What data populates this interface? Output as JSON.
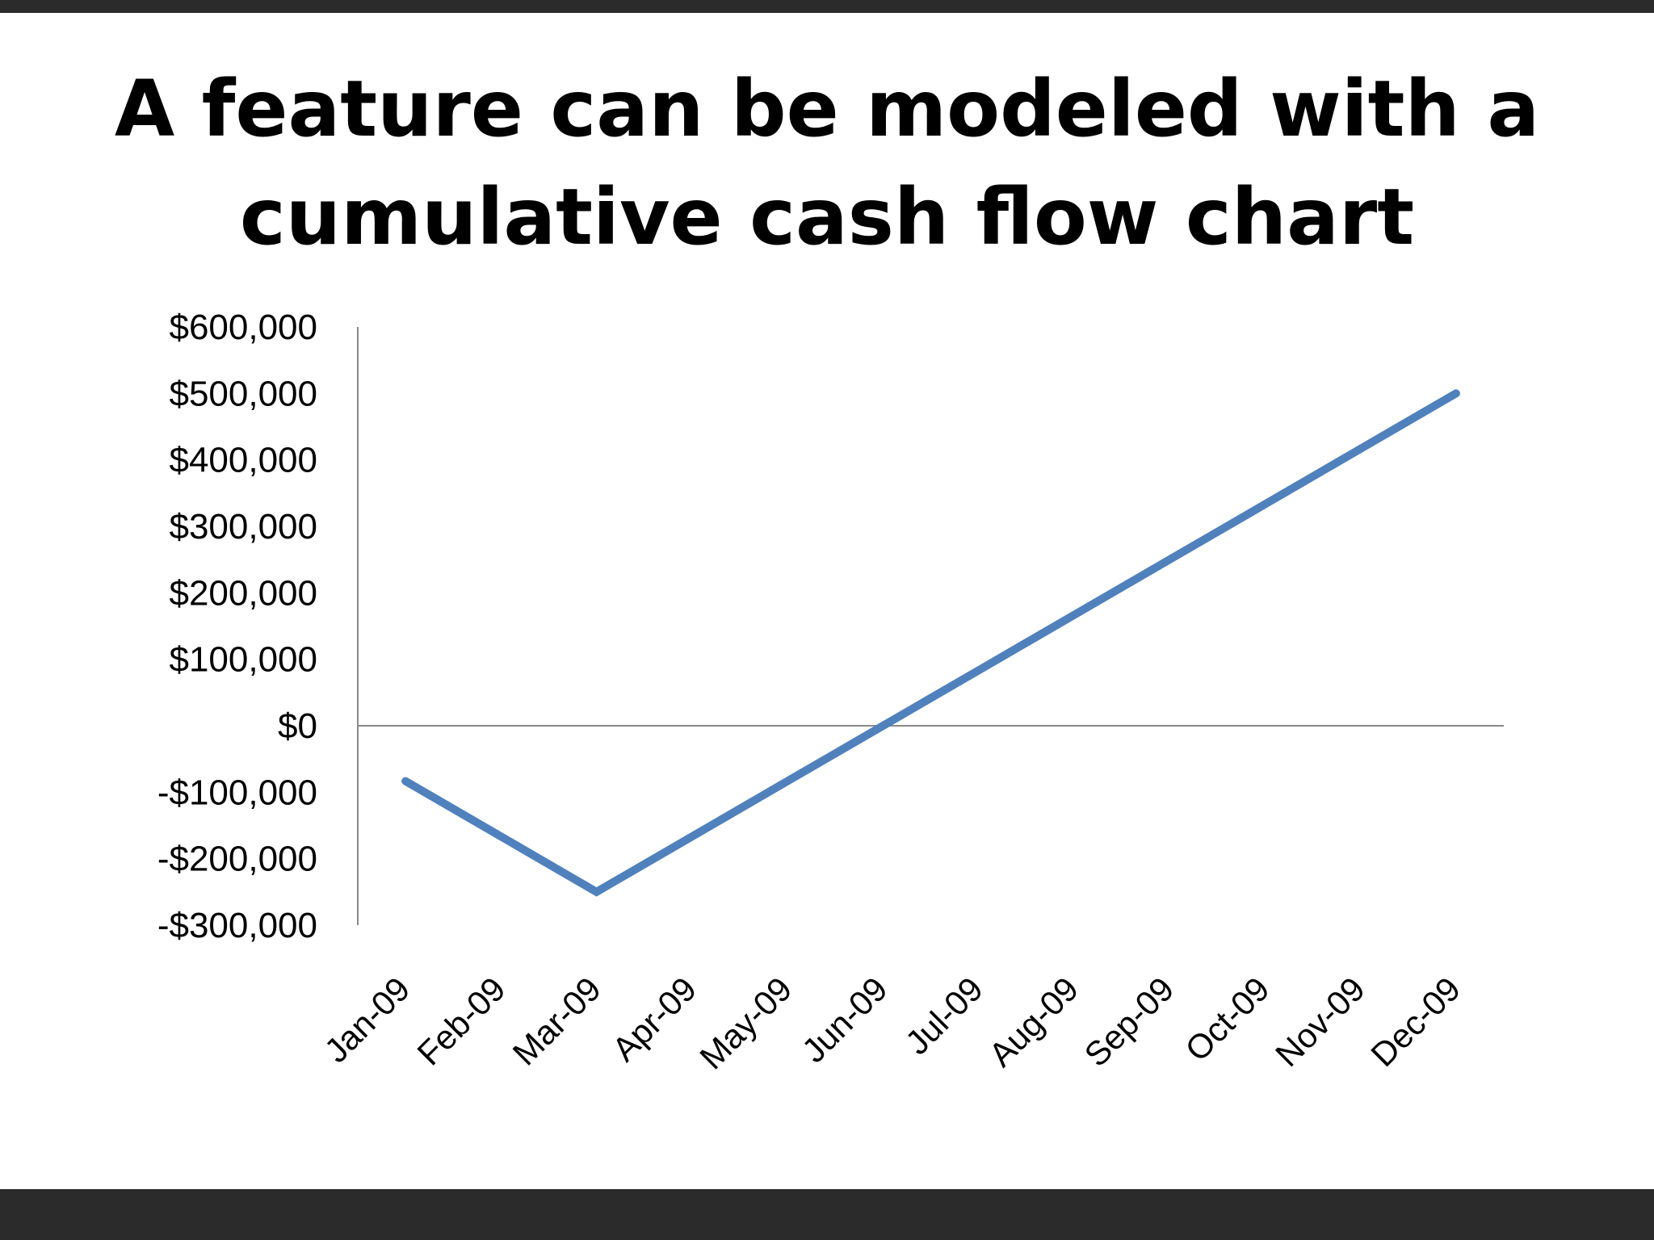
{
  "slide": {
    "title_line1": "A feature can be modeled with a",
    "title_line2": "cumulative cash flow chart"
  },
  "chart_data": {
    "type": "line",
    "title": "",
    "xlabel": "",
    "ylabel": "",
    "categories": [
      "Jan-09",
      "Feb-09",
      "Mar-09",
      "Apr-09",
      "May-09",
      "Jun-09",
      "Jul-09",
      "Aug-09",
      "Sep-09",
      "Oct-09",
      "Nov-09",
      "Dec-09"
    ],
    "series": [
      {
        "values": [
          -83333,
          -166667,
          -250000,
          -166667,
          -83333,
          0,
          83333,
          166667,
          250000,
          333333,
          416667,
          500000
        ],
        "color": "#4f81bd"
      }
    ],
    "ylim": [
      -300000,
      600000
    ],
    "yticks": [
      600000,
      500000,
      400000,
      300000,
      200000,
      100000,
      0,
      -100000,
      -200000,
      -300000
    ],
    "ytick_labels": [
      "$600,000",
      "$500,000",
      "$400,000",
      "$300,000",
      "$200,000",
      "$100,000",
      "$0",
      "-$100,000",
      "-$200,000",
      "-$300,000"
    ],
    "grid": false,
    "legend": "none"
  },
  "colors": {
    "background": "#ffffff",
    "frame": "#2b2b2b",
    "line": "#4f81bd",
    "axis": "#888888"
  }
}
